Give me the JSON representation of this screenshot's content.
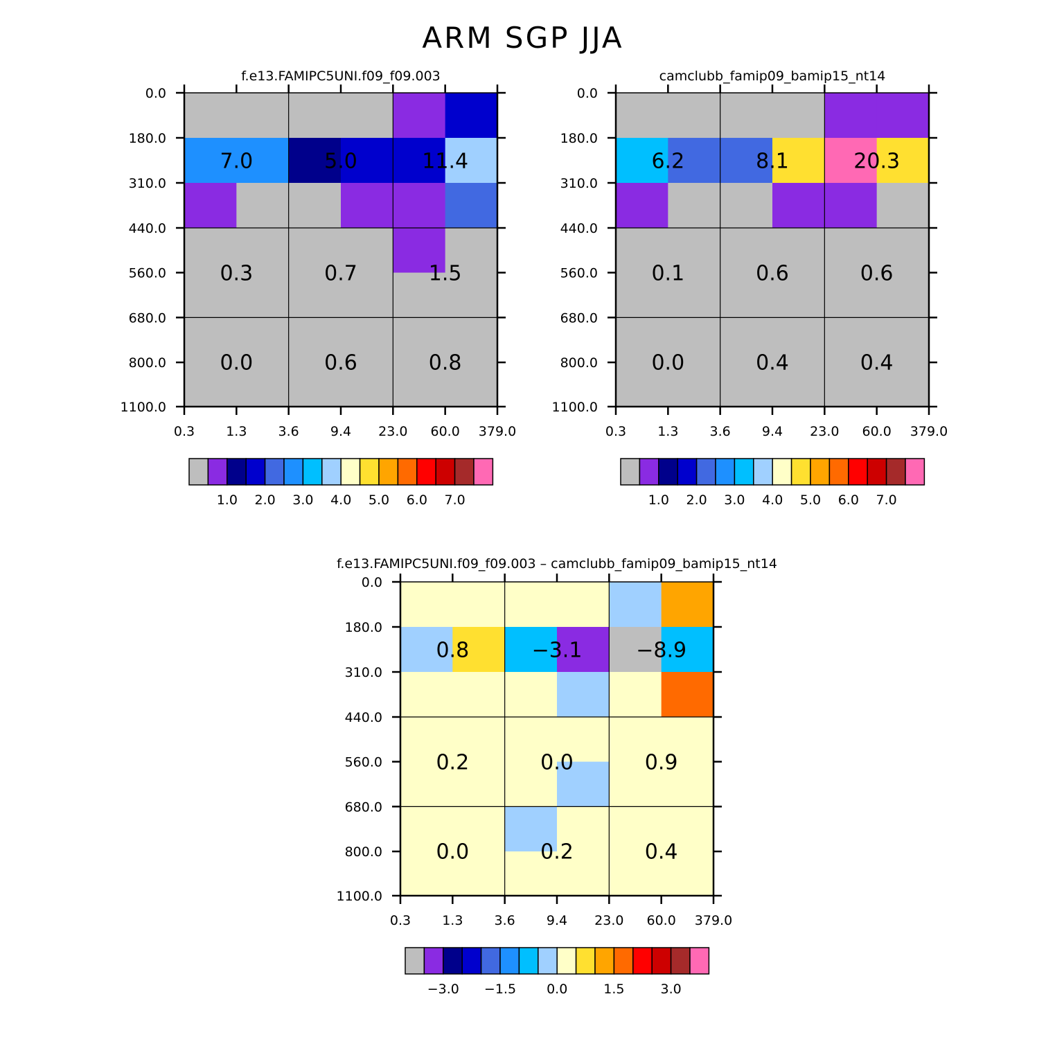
{
  "title": "ARM  SGP  JJA",
  "palette": [
    "#bebebe",
    "#8a2be2",
    "#00008b",
    "#0000cd",
    "#4169e1",
    "#1e90ff",
    "#00bfff",
    "#a0d0ff",
    "#ffffc8",
    "#ffe030",
    "#ffa500",
    "#ff6a00",
    "#ff0000",
    "#cd0000",
    "#a52a2a",
    "#ff69b4"
  ],
  "chart_data": [
    {
      "type": "heatmap",
      "title": "f.e13.FAMIPC5UNI.f09_f09.003",
      "x_tick_labels": [
        "0.3",
        "1.3",
        "3.6",
        "9.4",
        "23.0",
        "60.0",
        "379.0"
      ],
      "y_tick_labels": [
        "0.0",
        "180.0",
        "310.0",
        "440.0",
        "560.0",
        "680.0",
        "800.0",
        "1100.0"
      ],
      "cell_color_index": [
        [
          0,
          0,
          0,
          0,
          1,
          3
        ],
        [
          5,
          5,
          2,
          3,
          3,
          7
        ],
        [
          1,
          0,
          0,
          1,
          1,
          4
        ],
        [
          0,
          0,
          0,
          0,
          1,
          0
        ],
        [
          0,
          0,
          0,
          0,
          0,
          0
        ],
        [
          0,
          0,
          0,
          0,
          0,
          0
        ],
        [
          0,
          0,
          0,
          0,
          0,
          0
        ]
      ],
      "block_values": [
        [
          "7.0",
          "5.0",
          "11.4"
        ],
        [
          "0.3",
          "0.7",
          "1.5"
        ],
        [
          "0.0",
          "0.6",
          "0.8"
        ]
      ],
      "colorbar_labels": [
        "1.0",
        "2.0",
        "3.0",
        "4.0",
        "5.0",
        "6.0",
        "7.0"
      ]
    },
    {
      "type": "heatmap",
      "title": "camclubb_famip09_bamip15_nt14",
      "x_tick_labels": [
        "0.3",
        "1.3",
        "3.6",
        "9.4",
        "23.0",
        "60.0",
        "379.0"
      ],
      "y_tick_labels": [
        "0.0",
        "180.0",
        "310.0",
        "440.0",
        "560.0",
        "680.0",
        "800.0",
        "1100.0"
      ],
      "cell_color_index": [
        [
          0,
          0,
          0,
          0,
          1,
          1
        ],
        [
          6,
          4,
          4,
          9,
          15,
          9
        ],
        [
          1,
          0,
          0,
          1,
          1,
          0
        ],
        [
          0,
          0,
          0,
          0,
          0,
          0
        ],
        [
          0,
          0,
          0,
          0,
          0,
          0
        ],
        [
          0,
          0,
          0,
          0,
          0,
          0
        ],
        [
          0,
          0,
          0,
          0,
          0,
          0
        ]
      ],
      "block_values": [
        [
          "6.2",
          "8.1",
          "20.3"
        ],
        [
          "0.1",
          "0.6",
          "0.6"
        ],
        [
          "0.0",
          "0.4",
          "0.4"
        ]
      ],
      "colorbar_labels": [
        "1.0",
        "2.0",
        "3.0",
        "4.0",
        "5.0",
        "6.0",
        "7.0"
      ]
    },
    {
      "type": "heatmap",
      "title": "f.e13.FAMIPC5UNI.f09_f09.003 – camclubb_famip09_bamip15_nt14",
      "x_tick_labels": [
        "0.3",
        "1.3",
        "3.6",
        "9.4",
        "23.0",
        "60.0",
        "379.0"
      ],
      "y_tick_labels": [
        "0.0",
        "180.0",
        "310.0",
        "440.0",
        "560.0",
        "680.0",
        "800.0",
        "1100.0"
      ],
      "cell_color_index": [
        [
          8,
          8,
          8,
          8,
          7,
          10
        ],
        [
          7,
          9,
          6,
          1,
          0,
          6
        ],
        [
          8,
          8,
          8,
          7,
          8,
          11
        ],
        [
          8,
          8,
          8,
          8,
          8,
          8
        ],
        [
          8,
          8,
          8,
          7,
          8,
          8
        ],
        [
          8,
          8,
          7,
          8,
          8,
          8
        ],
        [
          8,
          8,
          8,
          8,
          8,
          8
        ]
      ],
      "block_values": [
        [
          "0.8",
          "−3.1",
          "−8.9"
        ],
        [
          "0.2",
          "0.0",
          "0.9"
        ],
        [
          "0.0",
          "0.2",
          "0.4"
        ]
      ],
      "colorbar_labels": [
        "−3.0",
        "−1.5",
        "0.0",
        "1.5",
        "3.0"
      ]
    }
  ]
}
